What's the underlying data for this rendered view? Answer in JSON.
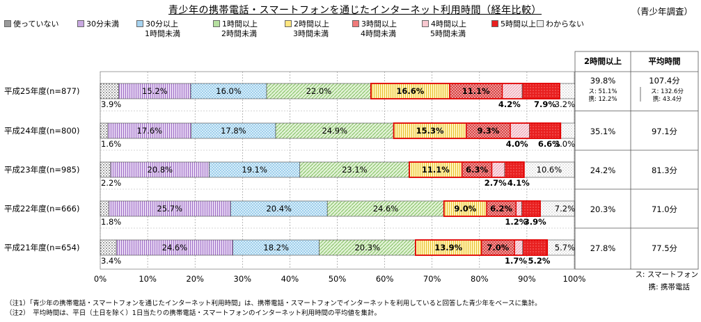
{
  "title": "青少年の携帯電話・スマートフォンを通じたインターネット利用時間（経年比較）",
  "subtitle": "（青少年調査）",
  "colors": {
    "not_using": "#9a9a9a",
    "lt30": "#c8a8e0",
    "30to60": "#a6d3f0",
    "1to2": "#b6e0a0",
    "2to3": "#ffe680",
    "3to4": "#f07a7a",
    "4to5": "#f8c8d0",
    "5plus": "#e82020",
    "unknown": "#eeeeee"
  },
  "legend": [
    {
      "key": "not_using",
      "line1": "使っていない",
      "line2": ""
    },
    {
      "key": "lt30",
      "line1": "30分未満",
      "line2": ""
    },
    {
      "key": "30to60",
      "line1": "30分以上",
      "line2": "1時間未満"
    },
    {
      "key": "1to2",
      "line1": "1時間以上",
      "line2": "2時間未満"
    },
    {
      "key": "2to3",
      "line1": "2時間以上",
      "line2": "3時間未満"
    },
    {
      "key": "3to4",
      "line1": "3時間以上",
      "line2": "4時間未満"
    },
    {
      "key": "4to5",
      "line1": "4時間以上",
      "line2": "5時間未満"
    },
    {
      "key": "5plus",
      "line1": "5時間以上",
      "line2": ""
    },
    {
      "key": "unknown",
      "line1": "わからない",
      "line2": ""
    }
  ],
  "table": {
    "header_2h": "2時間以上",
    "header_avg": "平均時間",
    "footnote1": "ス: スマートフォン",
    "footnote2": "携: 携帯電話"
  },
  "chart_data": {
    "type": "bar",
    "orientation": "horizontal",
    "stacked": true,
    "xlim": [
      0,
      100
    ],
    "x_ticks": [
      "0%",
      "10%",
      "20%",
      "30%",
      "40%",
      "50%",
      "60%",
      "70%",
      "80%",
      "90%",
      "100%"
    ],
    "series_keys": [
      "not_using",
      "lt30",
      "30to60",
      "1to2",
      "2to3",
      "3to4",
      "4to5",
      "5plus",
      "unknown"
    ],
    "rows": [
      {
        "label": "平成25年度(n=877)",
        "values": [
          3.9,
          15.2,
          16.0,
          22.0,
          16.6,
          11.1,
          4.2,
          7.9,
          3.2
        ],
        "two_hours_plus": "39.8%",
        "avg": "107.4分",
        "avg_sub": [
          "ス: 132.6分",
          "携: 43.4分"
        ],
        "two_sub": [
          "ス: 51.1%",
          "携: 12.2%"
        ]
      },
      {
        "label": "平成24年度(n=800)",
        "values": [
          1.6,
          17.6,
          17.8,
          24.9,
          15.3,
          9.3,
          4.0,
          6.6,
          3.0
        ],
        "two_hours_plus": "35.1%",
        "avg": "97.1分"
      },
      {
        "label": "平成23年度(n=985)",
        "values": [
          2.2,
          20.8,
          19.1,
          23.1,
          11.1,
          6.3,
          2.7,
          4.1,
          10.6
        ],
        "two_hours_plus": "24.2%",
        "avg": "81.3分"
      },
      {
        "label": "平成22年度(n=666)",
        "values": [
          1.8,
          25.7,
          20.4,
          24.6,
          9.0,
          6.2,
          1.2,
          3.9,
          7.2
        ],
        "two_hours_plus": "20.3%",
        "avg": "71.0分"
      },
      {
        "label": "平成21年度(n=654)",
        "values": [
          3.4,
          24.6,
          18.2,
          20.3,
          13.9,
          7.0,
          1.7,
          5.2,
          5.7
        ],
        "two_hours_plus": "27.8%",
        "avg": "77.5分"
      }
    ]
  },
  "notes": [
    "（注1）「青少年の携帯電話・スマートフォンを通じたインターネット利用時間」は、携帯電話・スマートフォンでインターネットを利用していると回答した青少年をベースに集計。",
    "（注2）　平均時間は、平日（土日を除く）1日当たりの携帯電話・スマートフォンのインターネット利用時間の平均値を集計。"
  ]
}
